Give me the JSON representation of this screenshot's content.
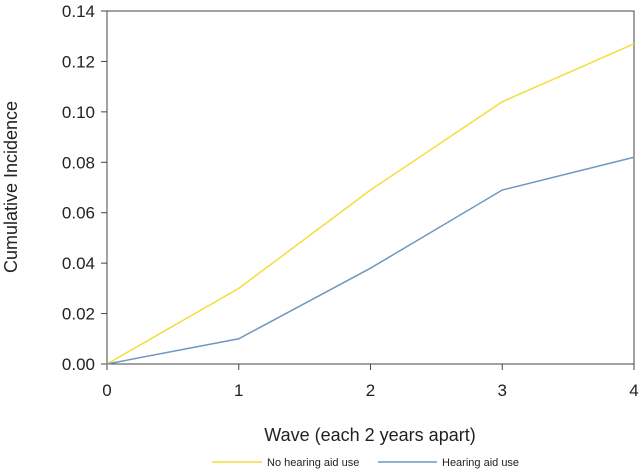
{
  "chart_data": {
    "type": "line",
    "xlabel": "Wave (each 2 years apart)",
    "ylabel": "Cumulative Incidence",
    "x": [
      0,
      1,
      2,
      3,
      4
    ],
    "xlim": [
      0,
      4
    ],
    "ylim": [
      0,
      0.14
    ],
    "x_ticks": [
      "0",
      "1",
      "2",
      "3",
      "4"
    ],
    "y_ticks": [
      "0.00",
      "0.02",
      "0.04",
      "0.06",
      "0.08",
      "0.10",
      "0.12",
      "0.14"
    ],
    "grid": false,
    "legend_position": "bottom",
    "series": [
      {
        "name": "No hearing aid use",
        "color": "#f2de3a",
        "values": [
          0,
          0.03,
          0.069,
          0.104,
          0.127
        ]
      },
      {
        "name": "Hearing aid use",
        "color": "#6f97bf",
        "values": [
          0,
          0.01,
          0.038,
          0.069,
          0.082
        ]
      }
    ]
  }
}
